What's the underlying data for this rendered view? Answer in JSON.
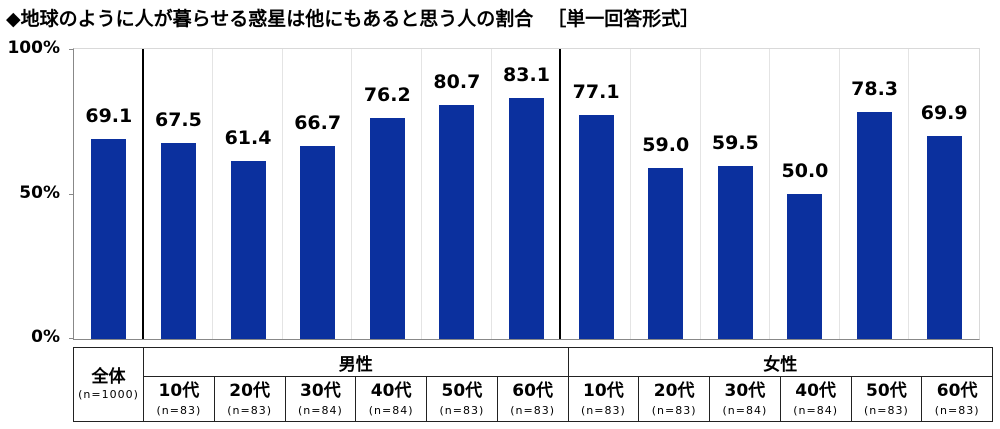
{
  "title": {
    "main": "◆地球のように人が暮らせる惑星は他にもあると思う人の割合",
    "suffix": "［単一回答形式］"
  },
  "colors": {
    "bar": "#0b309e",
    "separator": "#000000",
    "gridline": "#e4e4e4"
  },
  "y_axis": {
    "ticks": [
      "100%",
      "50%",
      "0%"
    ]
  },
  "table": {
    "total": {
      "label": "全体",
      "n": "(n=1000)"
    },
    "groups": [
      {
        "label": "男性",
        "cols": [
          {
            "age": "10代",
            "n": "(n=83)"
          },
          {
            "age": "20代",
            "n": "(n=83)"
          },
          {
            "age": "30代",
            "n": "(n=84)"
          },
          {
            "age": "40代",
            "n": "(n=84)"
          },
          {
            "age": "50代",
            "n": "(n=83)"
          },
          {
            "age": "60代",
            "n": "(n=83)"
          }
        ]
      },
      {
        "label": "女性",
        "cols": [
          {
            "age": "10代",
            "n": "(n=83)"
          },
          {
            "age": "20代",
            "n": "(n=83)"
          },
          {
            "age": "30代",
            "n": "(n=84)"
          },
          {
            "age": "40代",
            "n": "(n=84)"
          },
          {
            "age": "50代",
            "n": "(n=83)"
          },
          {
            "age": "60代",
            "n": "(n=83)"
          }
        ]
      }
    ]
  },
  "bars": [
    {
      "label": "69.1",
      "value": 69.1
    },
    {
      "label": "67.5",
      "value": 67.5
    },
    {
      "label": "61.4",
      "value": 61.4
    },
    {
      "label": "66.7",
      "value": 66.7
    },
    {
      "label": "76.2",
      "value": 76.2
    },
    {
      "label": "80.7",
      "value": 80.7
    },
    {
      "label": "83.1",
      "value": 83.1
    },
    {
      "label": "77.1",
      "value": 77.1
    },
    {
      "label": "59.0",
      "value": 59.0
    },
    {
      "label": "59.5",
      "value": 59.5
    },
    {
      "label": "50.0",
      "value": 50.0
    },
    {
      "label": "78.3",
      "value": 78.3
    },
    {
      "label": "69.9",
      "value": 69.9
    }
  ],
  "chart_data": {
    "type": "bar",
    "title": "◆地球のように人が暮らせる惑星は他にもあると思う人の割合 ［単一回答形式］",
    "categories": [
      "全体 (n=1000)",
      "男性 10代 (n=83)",
      "男性 20代 (n=83)",
      "男性 30代 (n=84)",
      "男性 40代 (n=84)",
      "男性 50代 (n=83)",
      "男性 60代 (n=83)",
      "女性 10代 (n=83)",
      "女性 20代 (n=83)",
      "女性 30代 (n=84)",
      "女性 40代 (n=84)",
      "女性 50代 (n=83)",
      "女性 60代 (n=83)"
    ],
    "values": [
      69.1,
      67.5,
      61.4,
      66.7,
      76.2,
      80.7,
      83.1,
      77.1,
      59.0,
      59.5,
      50.0,
      78.3,
      69.9
    ],
    "xlabel": "",
    "ylabel": "",
    "ylim": [
      0,
      100
    ],
    "yticks": [
      "0%",
      "50%",
      "100%"
    ],
    "grid": false,
    "legend": null,
    "group_separators_after": [
      "全体 (n=1000)",
      "男性 60代 (n=83)"
    ]
  }
}
